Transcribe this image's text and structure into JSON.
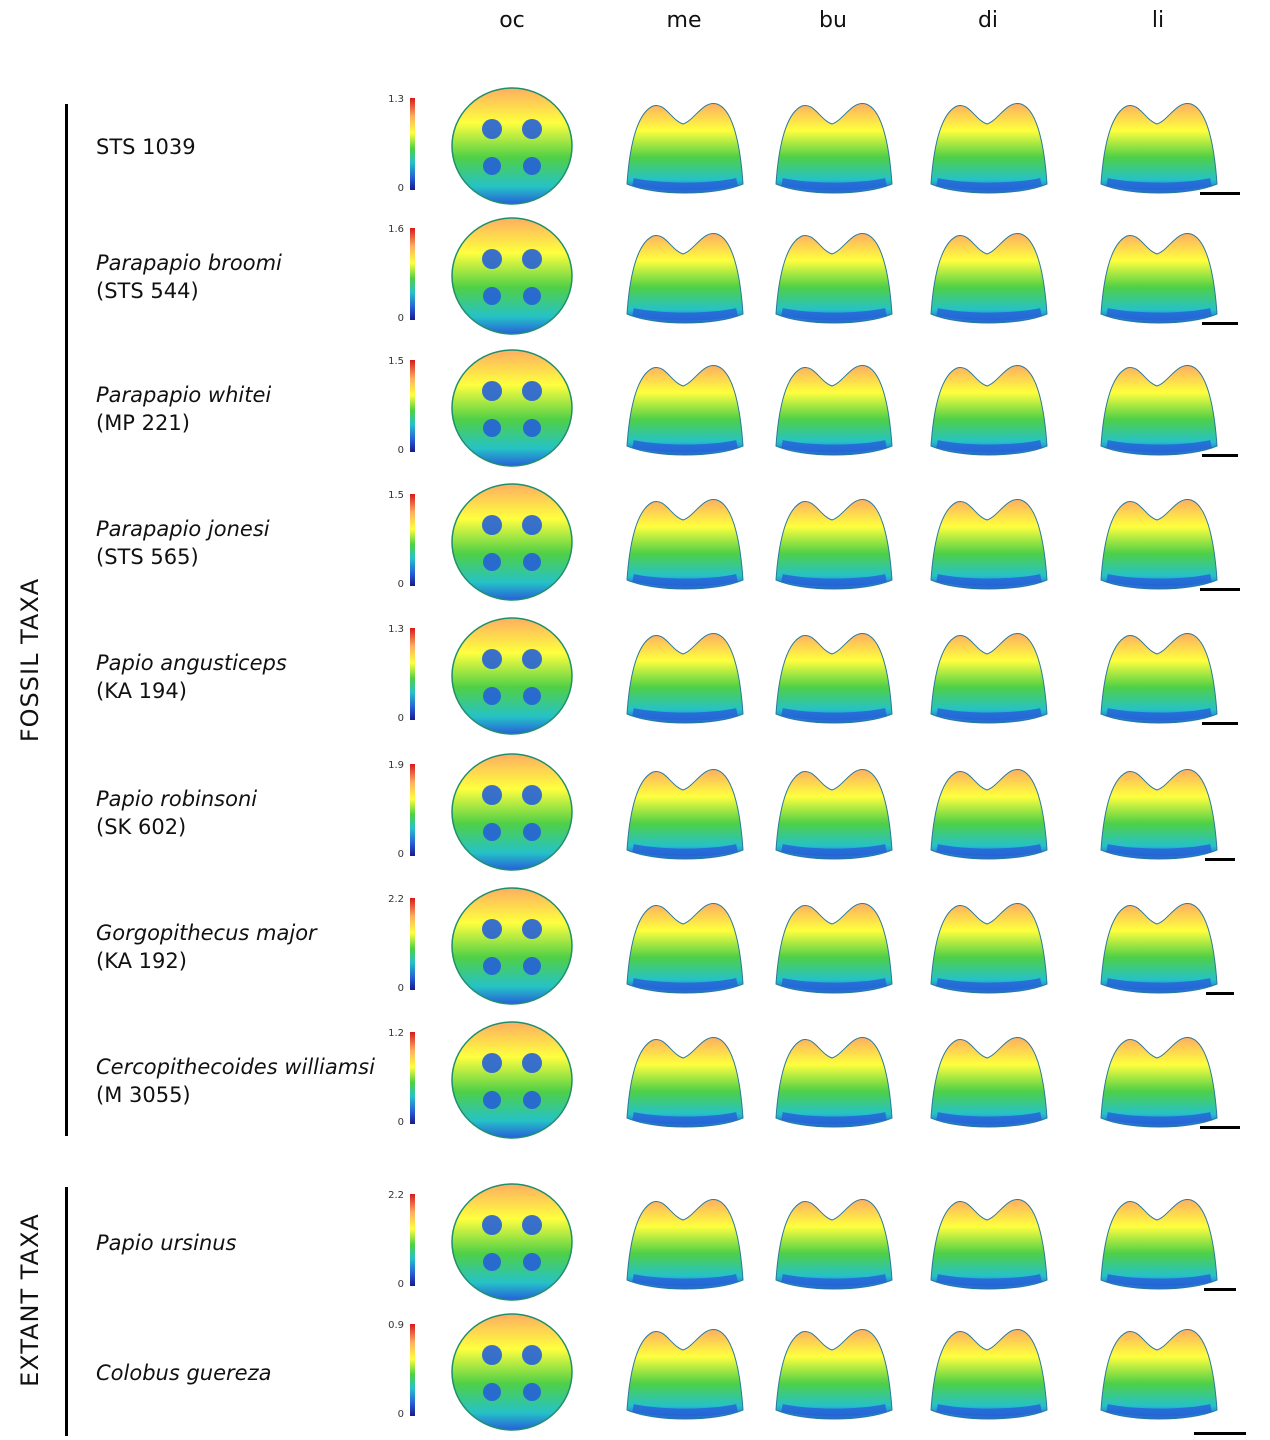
{
  "columns": [
    "oc",
    "me",
    "bu",
    "di",
    "li"
  ],
  "groups": [
    {
      "label": "FOSSIL TAXA"
    },
    {
      "label": "EXTANT TAXA"
    }
  ],
  "rows": [
    {
      "taxon": "",
      "code": "STS 1039",
      "scale_max": "1.3",
      "scale_min": "0"
    },
    {
      "taxon": "Parapapio broomi",
      "code": "(STS 544)",
      "scale_max": "1.6",
      "scale_min": "0"
    },
    {
      "taxon": "Parapapio whitei",
      "code": "(MP 221)",
      "scale_max": "1.5",
      "scale_min": "0"
    },
    {
      "taxon": "Parapapio jonesi",
      "code": "(STS 565)",
      "scale_max": "1.5",
      "scale_min": "0"
    },
    {
      "taxon": "Papio angusticeps",
      "code": "(KA 194)",
      "scale_max": "1.3",
      "scale_min": "0"
    },
    {
      "taxon": "Papio robinsoni",
      "code": "(SK 602)",
      "scale_max": "1.9",
      "scale_min": "0"
    },
    {
      "taxon": "Gorgopithecus major",
      "code": "(KA 192)",
      "scale_max": "2.2",
      "scale_min": "0"
    },
    {
      "taxon": "Cercopithecoides williamsi",
      "code": "(M 3055)",
      "scale_max": "1.2",
      "scale_min": "0"
    },
    {
      "taxon": "Papio ursinus",
      "code": "",
      "scale_max": "2.2",
      "scale_min": "0"
    },
    {
      "taxon": "Colobus guereza",
      "code": "",
      "scale_max": "0.9",
      "scale_min": "0"
    }
  ],
  "colormap": [
    "#1a1a8c",
    "#2660d8",
    "#26c2c7",
    "#4fd046",
    "#ffff3f",
    "#fdae61",
    "#d7191c"
  ]
}
